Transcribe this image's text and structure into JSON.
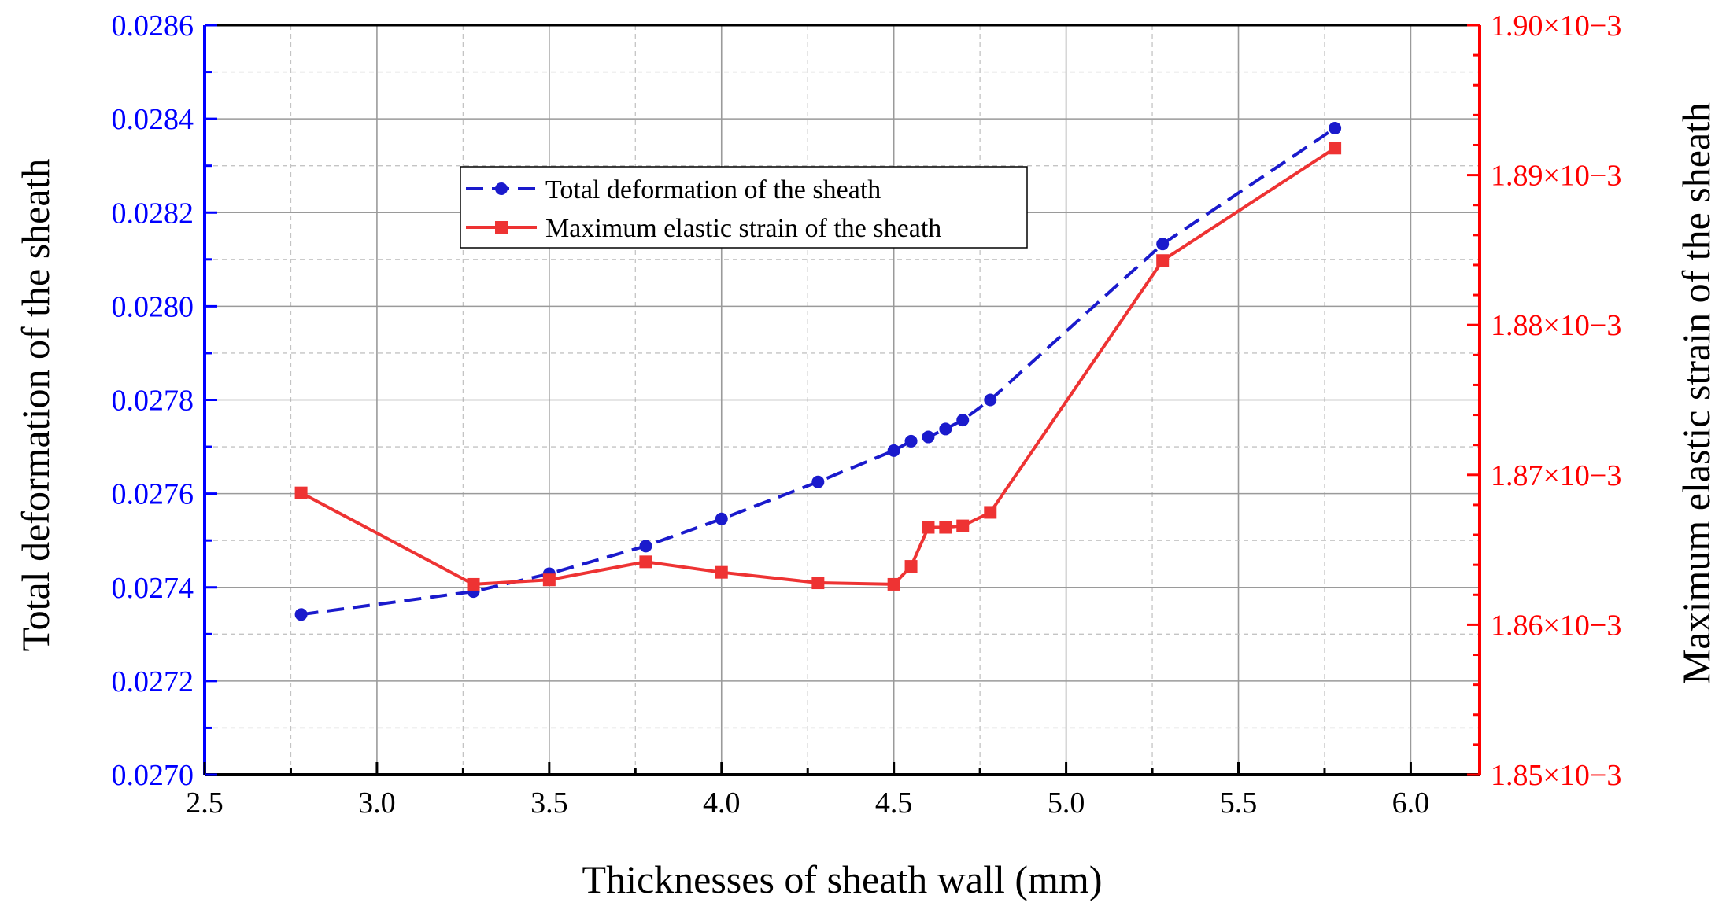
{
  "chart_data": {
    "type": "line",
    "xlabel": "Thicknesses of sheath wall (mm)",
    "xlim": [
      2.5,
      6.2
    ],
    "x_ticks": [
      "2.5",
      "3.0",
      "3.5",
      "4.0",
      "4.5",
      "5.0",
      "5.5",
      "6.0"
    ],
    "x_tick_values": [
      2.5,
      3.0,
      3.5,
      4.0,
      4.5,
      5.0,
      5.5,
      6.0
    ],
    "grid": true,
    "legend_position": "upper-left-center",
    "y_left": {
      "label": "Total deformation of the sheath",
      "ylim": [
        0.027,
        0.0286
      ],
      "ticks": [
        "0.0270",
        "0.0272",
        "0.0274",
        "0.0276",
        "0.0278",
        "0.0280",
        "0.0282",
        "0.0284",
        "0.0286"
      ],
      "tick_values": [
        0.027,
        0.0272,
        0.0274,
        0.0276,
        0.0278,
        0.028,
        0.0282,
        0.0284,
        0.0286
      ],
      "color": "#0000ff"
    },
    "y_right": {
      "label": "Maximum elastic strain of the sheath",
      "ylim": [
        0.00185,
        0.0019
      ],
      "ticks": [
        "1.85×10−3",
        "1.86×10−3",
        "1.87×10−3",
        "1.88×10−3",
        "1.89×10−3",
        "1.90×10−3"
      ],
      "tick_values": [
        0.00185,
        0.00186,
        0.00187,
        0.00188,
        0.00189,
        0.0019
      ],
      "color": "#ff0000"
    },
    "series": [
      {
        "name": "Total deformation of the sheath",
        "axis": "left",
        "color": "#1a1acc",
        "line_style": "dashed",
        "marker": "circle",
        "x": [
          2.78,
          3.28,
          3.5,
          3.78,
          4.0,
          4.28,
          4.5,
          4.55,
          4.6,
          4.65,
          4.7,
          4.78,
          5.28,
          5.78
        ],
        "values": [
          0.027342,
          0.027391,
          0.027429,
          0.027488,
          0.027546,
          0.027625,
          0.027692,
          0.027712,
          0.027721,
          0.027738,
          0.027757,
          0.0278,
          0.028133,
          0.02838
        ]
      },
      {
        "name": "Maximum elastic strain of the sheath",
        "axis": "right",
        "color": "#ee3333",
        "line_style": "solid",
        "marker": "square",
        "x": [
          2.78,
          3.28,
          3.5,
          3.78,
          4.0,
          4.28,
          4.5,
          4.55,
          4.6,
          4.65,
          4.7,
          4.78,
          5.28,
          5.78
        ],
        "values": [
          0.0018688,
          0.0018627,
          0.001863,
          0.0018642,
          0.0018635,
          0.0018628,
          0.0018627,
          0.0018639,
          0.0018665,
          0.0018665,
          0.0018666,
          0.0018675,
          0.0018843,
          0.0018918
        ]
      }
    ]
  }
}
